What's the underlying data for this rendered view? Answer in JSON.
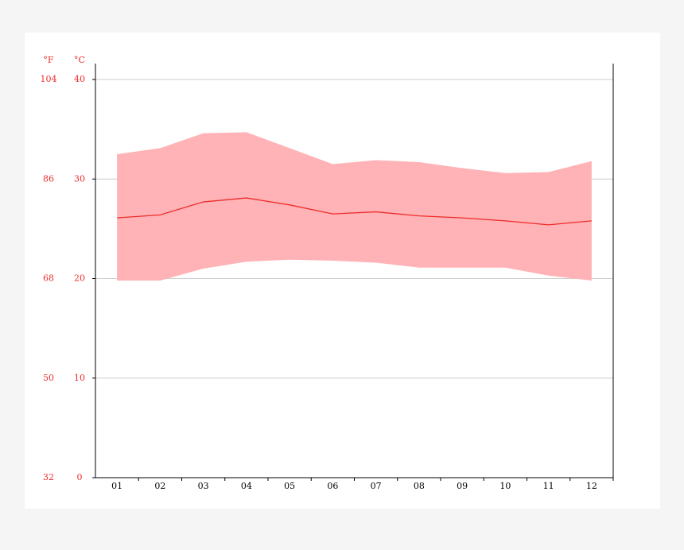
{
  "chart_data": {
    "type": "range-area",
    "y_unit": "°C",
    "y2_unit": "°F",
    "categories": [
      "01",
      "02",
      "03",
      "04",
      "05",
      "06",
      "07",
      "08",
      "09",
      "10",
      "11",
      "12"
    ],
    "range": {
      "color": "#ffb3b6",
      "high": [
        32.5,
        33.1,
        34.6,
        34.7,
        33.1,
        31.5,
        31.9,
        31.7,
        31.1,
        30.6,
        30.7,
        31.8
      ],
      "low": [
        19.8,
        19.8,
        21.0,
        21.7,
        21.9,
        21.8,
        21.6,
        21.1,
        21.1,
        21.1,
        20.3,
        19.8
      ]
    },
    "mean": {
      "color": "#ee2b2b",
      "values": [
        26.1,
        26.4,
        27.7,
        28.1,
        27.4,
        26.5,
        26.7,
        26.3,
        26.1,
        25.8,
        25.4,
        25.8
      ]
    },
    "ylim": [
      0,
      40
    ],
    "yticks": [
      0,
      10,
      20,
      30,
      40
    ],
    "y2lim": [
      32,
      104
    ],
    "y2ticks": [
      32,
      50,
      68,
      86,
      104
    ],
    "grid": true
  }
}
